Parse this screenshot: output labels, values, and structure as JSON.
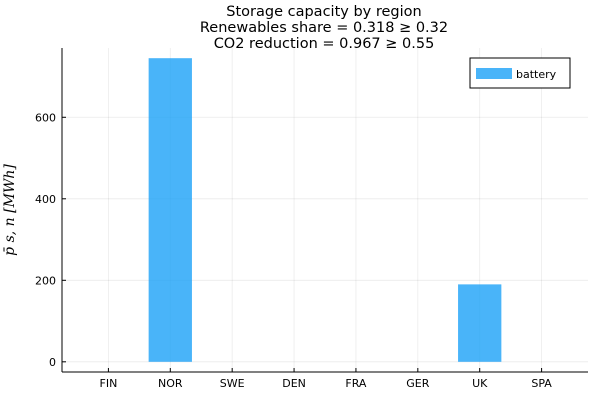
{
  "chart_data": {
    "type": "bar",
    "title_lines": [
      "Storage capacity by region",
      "Renewables share = 0.318 ≥ 0.32",
      "CO2 reduction = 0.967 ≥ 0.55"
    ],
    "ylabel": "p̄ s, n [MWh]",
    "categories": [
      "FIN",
      "NOR",
      "SWE",
      "DEN",
      "FRA",
      "GER",
      "UK",
      "SPA"
    ],
    "series": [
      {
        "name": "battery",
        "color": "#1ba1f7",
        "values": [
          0,
          745,
          0,
          0,
          0,
          0,
          190,
          0
        ]
      }
    ],
    "yticks": [
      0,
      200,
      400,
      600
    ],
    "ylim": [
      -25,
      770
    ],
    "grid": true,
    "legend_position": "top-right"
  }
}
